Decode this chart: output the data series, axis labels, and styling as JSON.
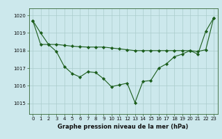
{
  "title": "Graphe pression niveau de la mer (hPa)",
  "bg_color": "#cce8ec",
  "grid_color": "#aacccc",
  "line_color": "#1a5c1a",
  "marker_color": "#1a5c1a",
  "xlim": [
    -0.5,
    23.5
  ],
  "ylim": [
    1014.4,
    1020.4
  ],
  "yticks": [
    1015,
    1016,
    1017,
    1018,
    1019,
    1020
  ],
  "xtick_labels": [
    "0",
    "1",
    "2",
    "3",
    "4",
    "5",
    "6",
    "7",
    "8",
    "9",
    "10",
    "11",
    "12",
    "13",
    "14",
    "15",
    "16",
    "17",
    "18",
    "19",
    "20",
    "21",
    "22",
    "23"
  ],
  "series1": [
    1019.7,
    1019.0,
    1018.35,
    1017.95,
    1017.1,
    1016.7,
    1016.5,
    1016.8,
    1016.75,
    1016.4,
    1015.95,
    1016.05,
    1016.15,
    1015.05,
    1016.25,
    1016.3,
    1017.0,
    1017.25,
    1017.65,
    1017.8,
    1018.0,
    1017.8,
    1019.1,
    1019.85
  ],
  "series2": [
    1019.7,
    1018.35,
    1018.35,
    1018.35,
    1018.3,
    1018.25,
    1018.22,
    1018.2,
    1018.2,
    1018.2,
    1018.15,
    1018.1,
    1018.05,
    1018.0,
    1018.0,
    1018.0,
    1018.0,
    1018.0,
    1018.0,
    1018.0,
    1018.0,
    1017.95,
    1018.05,
    1019.85
  ],
  "title_fontsize": 6,
  "tick_fontsize": 5,
  "ytick_fontsize": 5
}
